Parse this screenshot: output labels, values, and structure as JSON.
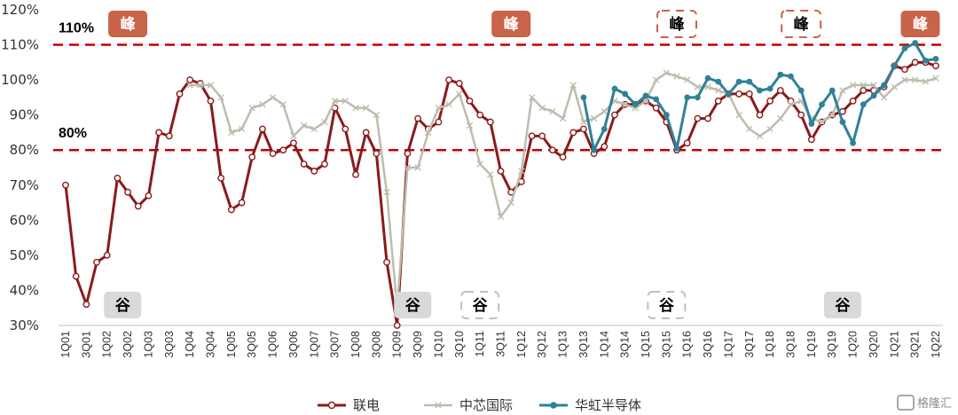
{
  "chart_data": {
    "type": "line",
    "categories": [
      "1Q01",
      "2Q01",
      "3Q01",
      "4Q01",
      "1Q02",
      "2Q02",
      "3Q02",
      "4Q02",
      "1Q03",
      "2Q03",
      "3Q03",
      "4Q03",
      "1Q04",
      "2Q04",
      "3Q04",
      "4Q04",
      "1Q05",
      "2Q05",
      "3Q05",
      "4Q05",
      "1Q06",
      "2Q06",
      "3Q06",
      "4Q06",
      "1Q07",
      "2Q07",
      "3Q07",
      "4Q07",
      "1Q08",
      "2Q08",
      "3Q08",
      "4Q08",
      "1Q09",
      "2Q09",
      "3Q09",
      "4Q09",
      "1Q10",
      "2Q10",
      "3Q10",
      "4Q10",
      "1Q11",
      "2Q11",
      "3Q11",
      "4Q11",
      "1Q12",
      "2Q12",
      "3Q12",
      "4Q12",
      "1Q13",
      "2Q13",
      "3Q13",
      "4Q13",
      "1Q14",
      "2Q14",
      "3Q14",
      "4Q14",
      "1Q15",
      "2Q15",
      "3Q15",
      "4Q15",
      "1Q16",
      "2Q16",
      "3Q16",
      "4Q16",
      "1Q17",
      "2Q17",
      "3Q17",
      "4Q17",
      "1Q18",
      "2Q18",
      "3Q18",
      "4Q18",
      "1Q19",
      "2Q19",
      "3Q19",
      "4Q19",
      "1Q20",
      "2Q20",
      "3Q20",
      "4Q20",
      "1Q21",
      "2Q21",
      "3Q21",
      "4Q21",
      "1Q22"
    ],
    "x_tick_labels": [
      "1Q01",
      "3Q01",
      "1Q02",
      "3Q02",
      "1Q03",
      "3Q03",
      "1Q04",
      "3Q04",
      "1Q05",
      "3Q05",
      "1Q06",
      "3Q06",
      "1Q07",
      "3Q07",
      "1Q08",
      "3Q08",
      "1Q09",
      "3Q09",
      "1Q10",
      "3Q10",
      "1Q11",
      "3Q11",
      "1Q12",
      "3Q12",
      "1Q13",
      "3Q13",
      "1Q14",
      "3Q14",
      "1Q15",
      "3Q15",
      "1Q16",
      "3Q16",
      "1Q17",
      "3Q17",
      "1Q18",
      "3Q18",
      "1Q19",
      "3Q19",
      "1Q20",
      "3Q20",
      "1Q21",
      "3Q21",
      "1Q22"
    ],
    "y_tick_labels": [
      "30%",
      "40%",
      "50%",
      "60%",
      "70%",
      "80%",
      "90%",
      "100%",
      "110%",
      "120%"
    ],
    "ylim": [
      30,
      120
    ],
    "xlabel": "",
    "ylabel": "",
    "grid": false,
    "legend_position": "bottom",
    "series": [
      {
        "name": "联电",
        "color": "#8b1a1a",
        "marker": "circle",
        "values": [
          70,
          44,
          36,
          48,
          50,
          72,
          68,
          64,
          67,
          85,
          84,
          96,
          100,
          99,
          94,
          72,
          63,
          65,
          78,
          86,
          79,
          80,
          82,
          76,
          74,
          76,
          92,
          86,
          73,
          85,
          79,
          48,
          30,
          79,
          89,
          86,
          88,
          100,
          99,
          94,
          90,
          88,
          74,
          68,
          71,
          84,
          84,
          80,
          78,
          85,
          86,
          79,
          81,
          90,
          93,
          93,
          94,
          92,
          88,
          80,
          82,
          89,
          89,
          94,
          96,
          96,
          96,
          90,
          94,
          97,
          94,
          90,
          83,
          88,
          90,
          91,
          94,
          97,
          97,
          98,
          104,
          103,
          105,
          105,
          104
        ]
      },
      {
        "name": "中芯国际",
        "color": "#bdbdae",
        "marker": "x",
        "values": [
          null,
          null,
          null,
          null,
          null,
          null,
          null,
          null,
          null,
          null,
          null,
          null,
          98.5,
          98.5,
          98.5,
          95,
          85,
          86,
          92,
          93,
          95,
          93,
          84,
          87,
          86,
          88,
          94,
          94,
          92,
          92,
          90,
          68,
          35,
          75,
          75,
          85,
          92,
          93,
          96,
          87,
          76,
          73,
          61,
          65,
          74,
          95,
          92,
          91,
          89,
          98.5,
          88,
          89,
          91,
          94,
          93,
          92,
          94,
          100,
          102,
          101,
          100,
          98,
          98,
          97,
          96,
          90,
          86,
          84,
          86,
          89,
          93,
          94,
          89,
          88,
          90,
          97,
          98.5,
          98.5,
          98.5,
          95,
          98,
          100,
          100,
          99.5,
          100.5
        ]
      },
      {
        "name": "华虹半导体",
        "color": "#2f8198",
        "marker": "circle",
        "values": [
          null,
          null,
          null,
          null,
          null,
          null,
          null,
          null,
          null,
          null,
          null,
          null,
          null,
          null,
          null,
          null,
          null,
          null,
          null,
          null,
          null,
          null,
          null,
          null,
          null,
          null,
          null,
          null,
          null,
          null,
          null,
          null,
          null,
          null,
          null,
          null,
          null,
          null,
          null,
          null,
          null,
          null,
          null,
          null,
          null,
          null,
          null,
          null,
          null,
          null,
          95,
          80,
          86,
          97.5,
          96,
          93,
          95.5,
          94.5,
          90,
          80.5,
          95,
          95,
          100.5,
          99.5,
          96,
          99.5,
          99.5,
          97,
          97.5,
          101.5,
          101,
          97,
          87.5,
          93,
          97,
          88,
          82,
          93,
          95.5,
          98.5,
          104,
          109,
          110.5,
          105.5,
          106
        ]
      }
    ],
    "reference_lines": [
      {
        "value": 110,
        "label": "110%",
        "color": "#c00000"
      },
      {
        "value": 80,
        "label": "80%",
        "color": "#c00000"
      }
    ],
    "annotations": [
      {
        "text": "峰",
        "index": 6,
        "style": "filled"
      },
      {
        "text": "峰",
        "index": 43,
        "style": "filled"
      },
      {
        "text": "峰",
        "index": 59,
        "style": "dashed"
      },
      {
        "text": "峰",
        "index": 71,
        "style": "dashed"
      },
      {
        "text": "峰",
        "index": 82.5,
        "style": "filled"
      },
      {
        "text": "谷",
        "index": 5.5,
        "style": "grey"
      },
      {
        "text": "谷",
        "index": 33.5,
        "style": "grey"
      },
      {
        "text": "谷",
        "index": 40,
        "style": "dashed-grey"
      },
      {
        "text": "谷",
        "index": 58,
        "style": "dashed-grey"
      },
      {
        "text": "谷",
        "index": 75,
        "style": "grey"
      }
    ],
    "colors": {
      "peak_fill": "#c8644a",
      "peak_dashed": "#c8644a",
      "trough_fill": "#d9d9d9",
      "trough_dashed": "#bfbfbf"
    }
  },
  "watermark": {
    "text": "格隆汇"
  }
}
